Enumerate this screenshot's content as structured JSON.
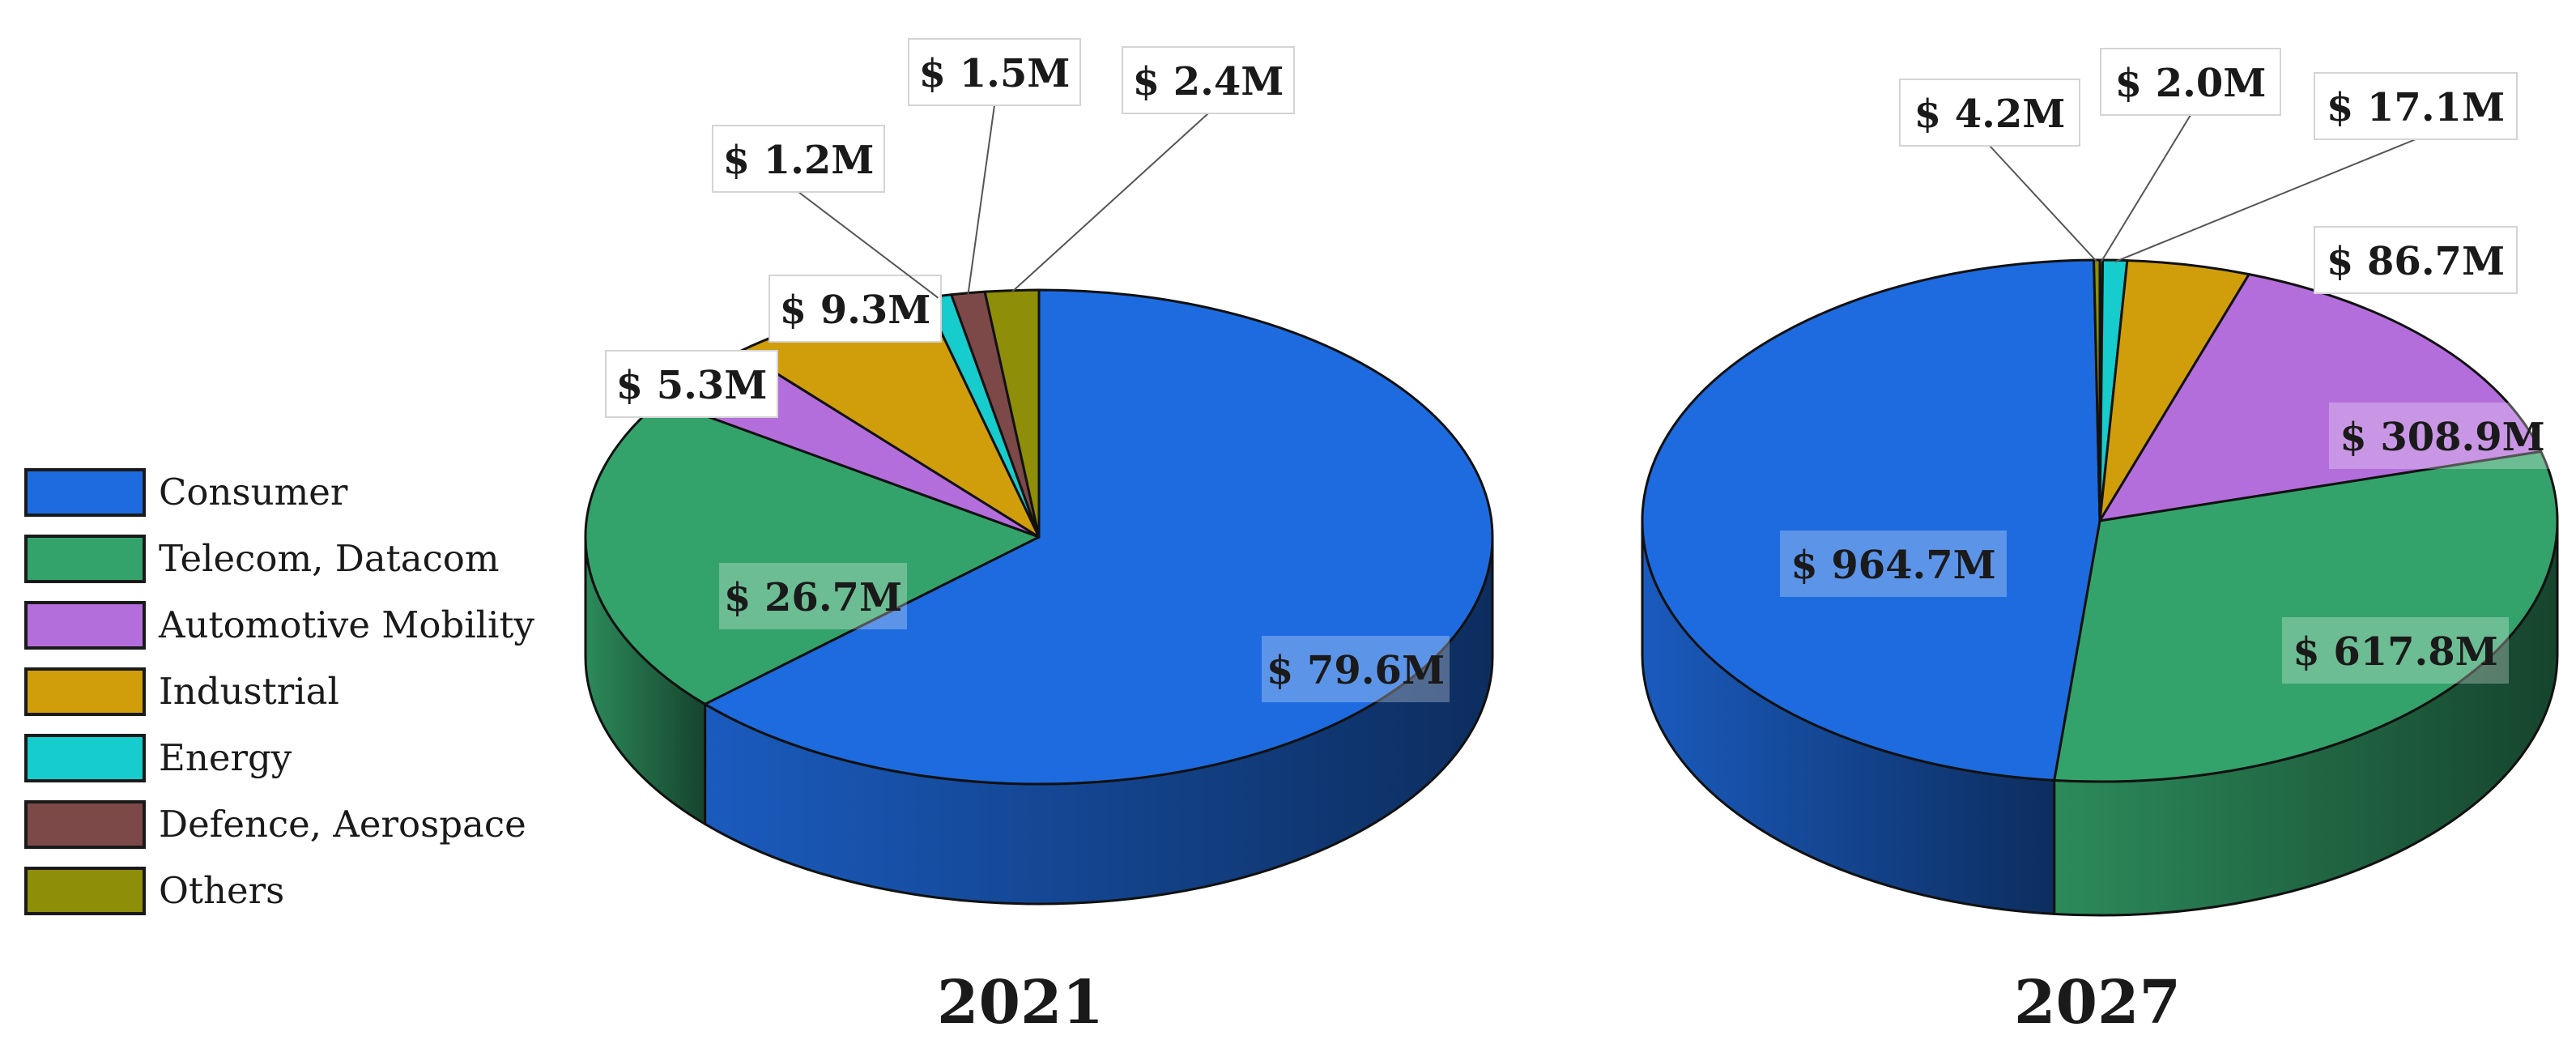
{
  "colors": {
    "Consumer": "#1E6BE0",
    "Telecom, Datacom": "#34A36B",
    "Automotive Mobility": "#B46EDC",
    "Industrial": "#D19E0B",
    "Energy": "#16CCCC",
    "Defence, Aerospace": "#7D4848",
    "Others": "#8E8E09"
  },
  "legend": {
    "items": [
      {
        "label": "Consumer"
      },
      {
        "label": "Telecom, Datacom"
      },
      {
        "label": "Automotive Mobility"
      },
      {
        "label": "Industrial"
      },
      {
        "label": "Energy"
      },
      {
        "label": "Defence, Aerospace"
      },
      {
        "label": "Others"
      }
    ]
  },
  "chart_data": [
    {
      "type": "pie",
      "title": "2021",
      "unit": "$ M",
      "slices": [
        {
          "name": "Consumer",
          "value": 79.6,
          "label": "$ 79.6M"
        },
        {
          "name": "Telecom, Datacom",
          "value": 26.7,
          "label": "$ 26.7M"
        },
        {
          "name": "Automotive Mobility",
          "value": 5.3,
          "label": "$ 5.3M"
        },
        {
          "name": "Industrial",
          "value": 9.3,
          "label": "$ 9.3M"
        },
        {
          "name": "Energy",
          "value": 1.2,
          "label": "$ 1.2M"
        },
        {
          "name": "Defence, Aerospace",
          "value": 1.5,
          "label": "$ 1.5M"
        },
        {
          "name": "Others",
          "value": 2.4,
          "label": "$ 2.4M"
        }
      ]
    },
    {
      "type": "pie",
      "title": "2027",
      "unit": "$ M",
      "slices": [
        {
          "name": "Consumer",
          "value": 964.7,
          "label": "$ 964.7M"
        },
        {
          "name": "Telecom, Datacom",
          "value": 617.8,
          "label": "$ 617.8M"
        },
        {
          "name": "Automotive Mobility",
          "value": 308.9,
          "label": "$ 308.9M"
        },
        {
          "name": "Industrial",
          "value": 86.7,
          "label": "$ 86.7M"
        },
        {
          "name": "Energy",
          "value": 17.1,
          "label": "$ 17.1M"
        },
        {
          "name": "Defence, Aerospace",
          "value": 2.0,
          "label": "$ 2.0M"
        },
        {
          "name": "Others",
          "value": 4.2,
          "label": "$ 4.2M"
        }
      ]
    }
  ]
}
